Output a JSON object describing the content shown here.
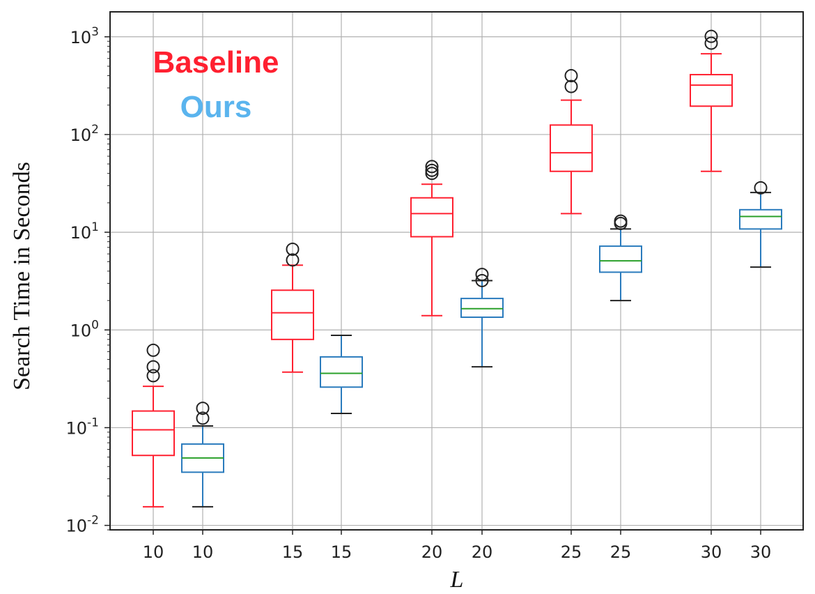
{
  "chart_data": {
    "type": "box",
    "title": "",
    "xlabel": "L",
    "ylabel": "Search Time in Seconds",
    "yscale": "log",
    "ylim": [
      0.009,
      1800
    ],
    "grid": true,
    "legend": {
      "placement": "top-left",
      "entries": [
        {
          "label": "Baseline",
          "color": "#ff2030"
        },
        {
          "label": "Ours",
          "color": "#5ab4ee"
        }
      ]
    },
    "yticks": [
      {
        "base": "10",
        "exp": "-2",
        "value": 0.01
      },
      {
        "base": "10",
        "exp": "-1",
        "value": 0.1
      },
      {
        "base": "10",
        "exp": "0",
        "value": 1
      },
      {
        "base": "10",
        "exp": "1",
        "value": 10
      },
      {
        "base": "10",
        "exp": "2",
        "value": 100
      },
      {
        "base": "10",
        "exp": "3",
        "value": 1000
      }
    ],
    "categories": [
      "10",
      "10",
      "15",
      "15",
      "20",
      "20",
      "25",
      "25",
      "30",
      "30"
    ],
    "series": [
      {
        "name": "Baseline",
        "color": "#ff2030",
        "median_color": "#ff2030",
        "boxes": [
          {
            "category": "10",
            "whisker_low": 0.0155,
            "q1": 0.052,
            "median": 0.095,
            "q3": 0.148,
            "whisker_high": 0.265,
            "outliers": [
              0.34,
              0.42,
              0.62
            ]
          },
          {
            "category": "15",
            "whisker_low": 0.37,
            "q1": 0.8,
            "median": 1.5,
            "q3": 2.55,
            "whisker_high": 4.6,
            "outliers": [
              5.2,
              6.7
            ]
          },
          {
            "category": "20",
            "whisker_low": 1.4,
            "q1": 9.0,
            "median": 15.5,
            "q3": 22.5,
            "whisker_high": 31,
            "outliers": [
              40,
              43,
              47
            ]
          },
          {
            "category": "25",
            "whisker_low": 15.5,
            "q1": 42,
            "median": 65,
            "q3": 125,
            "whisker_high": 225,
            "outliers": [
              310,
              400
            ]
          },
          {
            "category": "30",
            "whisker_low": 42,
            "q1": 195,
            "median": 320,
            "q3": 410,
            "whisker_high": 670,
            "outliers": [
              860,
              1010
            ]
          }
        ]
      },
      {
        "name": "Ours",
        "color": "#2a7bbd",
        "median_color": "#2aa02a",
        "boxes": [
          {
            "category": "10",
            "whisker_low": 0.0155,
            "q1": 0.035,
            "median": 0.049,
            "q3": 0.068,
            "whisker_high": 0.104,
            "outliers": [
              0.125,
              0.158
            ]
          },
          {
            "category": "15",
            "whisker_low": 0.14,
            "q1": 0.26,
            "median": 0.36,
            "q3": 0.53,
            "whisker_high": 0.88,
            "outliers": []
          },
          {
            "category": "20",
            "whisker_low": 0.42,
            "q1": 1.35,
            "median": 1.65,
            "q3": 2.1,
            "whisker_high": 3.2,
            "outliers": [
              3.2,
              3.7
            ]
          },
          {
            "category": "25",
            "whisker_low": 2.0,
            "q1": 3.9,
            "median": 5.1,
            "q3": 7.2,
            "whisker_high": 10.8,
            "outliers": [
              12.3,
              13.0
            ]
          },
          {
            "category": "30",
            "whisker_low": 4.4,
            "q1": 10.8,
            "median": 14.5,
            "q3": 17.0,
            "whisker_high": 25.5,
            "outliers": [
              28.5
            ]
          }
        ]
      }
    ]
  }
}
